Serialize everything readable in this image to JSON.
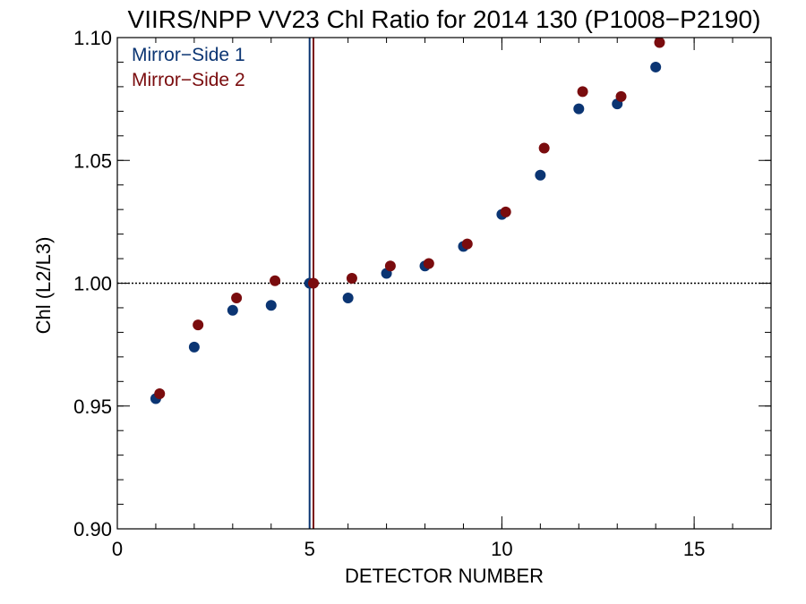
{
  "chart_data": {
    "type": "scatter",
    "title": "VIIRS/NPP VV23 Chl Ratio for 2014 130 (P1008−P2190)",
    "xlabel": "DETECTOR NUMBER",
    "ylabel": "Chl (L2/L3)",
    "xlim": [
      0,
      17
    ],
    "ylim": [
      0.9,
      1.1
    ],
    "xticks": [
      0,
      5,
      10,
      15
    ],
    "xtick_labels": [
      "0",
      "5",
      "10",
      "15"
    ],
    "yticks": [
      0.9,
      0.95,
      1.0,
      1.05,
      1.1
    ],
    "ytick_labels": [
      "0.90",
      "0.95",
      "1.00",
      "1.05",
      "1.10"
    ],
    "reference_line_y": 1.0,
    "legend_placement": "top-left",
    "series": [
      {
        "name": "Mirror−Side 1",
        "color": "#0b3573",
        "x": [
          1,
          2,
          3,
          4,
          5,
          6,
          7,
          8,
          9,
          10,
          11,
          12,
          13,
          14
        ],
        "y": [
          0.953,
          0.974,
          0.989,
          0.991,
          1.0,
          0.994,
          1.004,
          1.007,
          1.015,
          1.028,
          1.044,
          1.071,
          1.073,
          1.088
        ],
        "vline_x": 5
      },
      {
        "name": "Mirror−Side 2",
        "color": "#7a0c0e",
        "x": [
          1.1,
          2.1,
          3.1,
          4.1,
          5.1,
          6.1,
          7.1,
          8.1,
          9.1,
          10.1,
          11.1,
          12.1,
          13.1,
          14.1
        ],
        "y": [
          0.955,
          0.983,
          0.994,
          1.001,
          1.0,
          1.002,
          1.007,
          1.008,
          1.016,
          1.029,
          1.055,
          1.078,
          1.076,
          1.098
        ],
        "vline_x": 5.1
      }
    ]
  }
}
